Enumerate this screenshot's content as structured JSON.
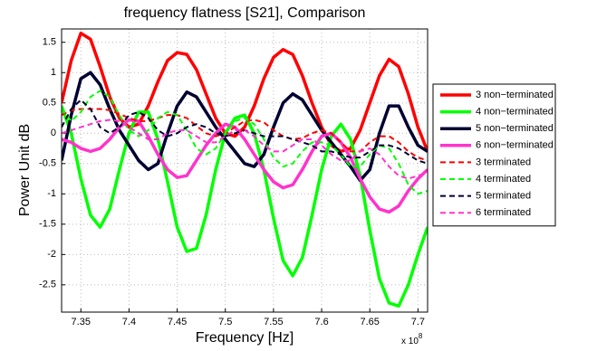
{
  "chart_data": {
    "type": "line",
    "title": "frequency flatness [S21], Comparison",
    "x_label": "Frequency [Hz]",
    "y_label": "Power Unit dB",
    "x_multiplier": "x 10",
    "x_exponent": "8",
    "xlim": [
      7.33,
      7.71
    ],
    "ylim": [
      -2.95,
      1.72
    ],
    "xticks": [
      7.35,
      7.4,
      7.45,
      7.5,
      7.55,
      7.6,
      7.65,
      7.7
    ],
    "yticks": [
      -2.5,
      -2,
      -1.5,
      -1,
      -0.5,
      0,
      0.5,
      1,
      1.5
    ],
    "grid": true,
    "legend_position": "right",
    "x": [
      7.33,
      7.34,
      7.35,
      7.36,
      7.37,
      7.38,
      7.39,
      7.4,
      7.41,
      7.42,
      7.43,
      7.44,
      7.45,
      7.46,
      7.47,
      7.48,
      7.49,
      7.5,
      7.51,
      7.52,
      7.53,
      7.54,
      7.55,
      7.56,
      7.57,
      7.58,
      7.59,
      7.6,
      7.61,
      7.62,
      7.63,
      7.64,
      7.65,
      7.66,
      7.67,
      7.68,
      7.69,
      7.7,
      7.71
    ],
    "series": [
      {
        "name": "3 non−terminated",
        "color": "#ff0000",
        "line_style": "solid",
        "values": [
          0.5,
          1.2,
          1.65,
          1.55,
          1.1,
          0.6,
          0.25,
          0.1,
          0.15,
          0.45,
          0.85,
          1.2,
          1.33,
          1.3,
          1.05,
          0.65,
          0.25,
          0.0,
          -0.05,
          0.1,
          0.45,
          0.9,
          1.25,
          1.38,
          1.3,
          0.95,
          0.5,
          0.1,
          -0.2,
          -0.3,
          -0.25,
          0.05,
          0.5,
          0.95,
          1.22,
          1.1,
          0.65,
          0.1,
          -0.3
        ]
      },
      {
        "name": "4 non−terminated",
        "color": "#00ff00",
        "line_style": "solid",
        "values": [
          0.45,
          0.0,
          -0.75,
          -1.35,
          -1.55,
          -1.25,
          -0.6,
          0.0,
          0.35,
          0.35,
          -0.1,
          -0.8,
          -1.55,
          -1.95,
          -1.9,
          -1.35,
          -0.6,
          0.0,
          0.25,
          0.3,
          0.0,
          -0.6,
          -1.4,
          -2.1,
          -2.35,
          -2.05,
          -1.35,
          -0.6,
          -0.05,
          0.15,
          -0.1,
          -0.7,
          -1.6,
          -2.4,
          -2.8,
          -2.85,
          -2.5,
          -2.0,
          -1.55
        ]
      },
      {
        "name": "5 non−terminated",
        "color": "#000033",
        "line_style": "solid",
        "values": [
          -0.45,
          0.3,
          0.9,
          1.0,
          0.8,
          0.4,
          0.05,
          -0.2,
          -0.45,
          -0.6,
          -0.5,
          0.0,
          0.45,
          0.68,
          0.6,
          0.35,
          0.1,
          -0.1,
          -0.3,
          -0.5,
          -0.55,
          -0.35,
          0.1,
          0.5,
          0.65,
          0.55,
          0.3,
          0.05,
          -0.15,
          -0.35,
          -0.55,
          -0.78,
          -0.6,
          0.0,
          0.45,
          0.45,
          0.1,
          -0.2,
          -0.3
        ]
      },
      {
        "name": "6 non−terminated",
        "color": "#ff33cc",
        "line_style": "solid",
        "values": [
          -0.1,
          -0.15,
          -0.25,
          -0.3,
          -0.25,
          -0.1,
          0.1,
          0.22,
          0.2,
          -0.05,
          -0.35,
          -0.6,
          -0.73,
          -0.7,
          -0.45,
          -0.2,
          0.0,
          0.15,
          0.1,
          -0.1,
          -0.35,
          -0.6,
          -0.8,
          -0.9,
          -0.85,
          -0.6,
          -0.3,
          -0.05,
          0.0,
          -0.15,
          -0.4,
          -0.75,
          -1.05,
          -1.25,
          -1.3,
          -1.2,
          -0.95,
          -0.75,
          -0.6
        ]
      },
      {
        "name": "3 terminated",
        "color": "#ff0000",
        "line_style": "dashed",
        "values": [
          0.3,
          0.38,
          0.4,
          0.4,
          0.4,
          0.38,
          0.32,
          0.25,
          0.2,
          0.2,
          0.25,
          0.3,
          0.3,
          0.25,
          0.12,
          0.0,
          -0.05,
          0.0,
          0.1,
          0.2,
          0.22,
          0.18,
          0.05,
          -0.05,
          -0.1,
          -0.08,
          0.0,
          0.05,
          0.0,
          -0.15,
          -0.3,
          -0.3,
          -0.15,
          -0.05,
          -0.05,
          -0.15,
          -0.3,
          -0.4,
          -0.45
        ]
      },
      {
        "name": "4 terminated",
        "color": "#00ff00",
        "line_style": "dashed",
        "values": [
          0.4,
          0.2,
          0.35,
          0.6,
          0.7,
          0.6,
          0.3,
          0.05,
          -0.05,
          0.05,
          0.25,
          0.35,
          0.3,
          0.05,
          -0.25,
          -0.35,
          -0.25,
          0.0,
          0.2,
          0.25,
          0.15,
          -0.1,
          -0.4,
          -0.55,
          -0.5,
          -0.3,
          -0.15,
          -0.15,
          -0.2,
          -0.35,
          -0.55,
          -0.55,
          -0.35,
          -0.2,
          -0.25,
          -0.5,
          -0.85,
          -1.0,
          -0.95
        ]
      },
      {
        "name": "5 terminated",
        "color": "#000033",
        "line_style": "dashed",
        "values": [
          0.1,
          0.4,
          0.55,
          0.4,
          0.1,
          0.0,
          0.1,
          0.3,
          0.35,
          0.25,
          0.05,
          -0.05,
          0.0,
          0.1,
          0.15,
          0.1,
          0.0,
          -0.05,
          0.0,
          0.05,
          0.0,
          -0.05,
          -0.05,
          -0.05,
          -0.1,
          -0.15,
          -0.2,
          -0.3,
          -0.3,
          -0.35,
          -0.4,
          -0.4,
          -0.3,
          -0.2,
          -0.2,
          -0.25,
          -0.35,
          -0.45,
          -0.5
        ]
      },
      {
        "name": "6 terminated",
        "color": "#ff33cc",
        "line_style": "dashed",
        "values": [
          0.0,
          0.05,
          0.1,
          0.15,
          0.2,
          0.22,
          0.2,
          0.1,
          0.0,
          -0.1,
          -0.1,
          0.0,
          0.05,
          0.05,
          -0.05,
          -0.15,
          -0.15,
          -0.05,
          0.05,
          0.05,
          -0.05,
          -0.2,
          -0.3,
          -0.3,
          -0.2,
          -0.1,
          -0.1,
          -0.2,
          -0.35,
          -0.45,
          -0.45,
          -0.3,
          -0.25,
          -0.35,
          -0.55,
          -0.7,
          -0.75,
          -0.7,
          -0.65
        ]
      }
    ]
  }
}
